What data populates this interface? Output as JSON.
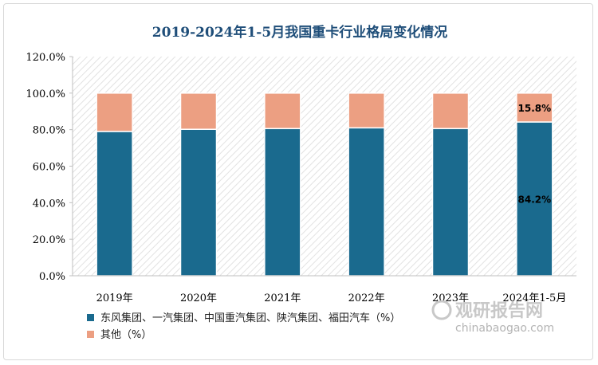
{
  "chart_data": {
    "type": "bar",
    "stacked": true,
    "title": "2019-2024年1-5月我国重卡行业格局变化情况",
    "categories": [
      "2019年",
      "2020年",
      "2021年",
      "2022年",
      "2023年",
      "2024年1-5月"
    ],
    "series": [
      {
        "name": "东风集团、一汽集团、中国重汽集团、陕汽集团、福田汽车（%）",
        "color": "#1a6a8e",
        "values": [
          79.0,
          80.2,
          80.6,
          81.0,
          80.6,
          84.2
        ]
      },
      {
        "name": "其他（%）",
        "color": "#ec9f82",
        "values": [
          21.0,
          19.8,
          19.4,
          19.0,
          19.4,
          15.8
        ]
      }
    ],
    "ylim": [
      0,
      120
    ],
    "yticks": [
      "0.0%",
      "20.0%",
      "40.0%",
      "60.0%",
      "80.0%",
      "100.0%",
      "120.0%"
    ],
    "data_labels": [
      {
        "series": 0,
        "category": 5,
        "text": "84.2%"
      },
      {
        "series": 1,
        "category": 5,
        "text": "15.8%"
      }
    ],
    "grid": "hatched plot area",
    "legend_position": "bottom-left"
  },
  "watermark": {
    "brand": "观研报告网",
    "url": "chinabaogao.com"
  }
}
